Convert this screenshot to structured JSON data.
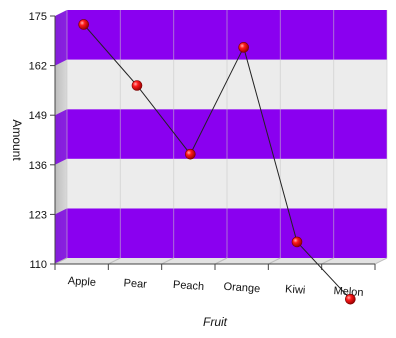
{
  "chart_data": {
    "type": "line",
    "title": "",
    "xlabel": "Fruit",
    "ylabel": "Amount",
    "categories": [
      "Apple",
      "Pear",
      "Peach",
      "Orange",
      "Kiwi",
      "Melon"
    ],
    "values": [
      172,
      156,
      138,
      166,
      115,
      100
    ],
    "ylim": [
      110,
      175
    ],
    "yticks": [
      "110",
      "123",
      "136",
      "149",
      "162",
      "175"
    ],
    "grid": true,
    "legend": "none",
    "colors": {
      "band_dark": "#8a00f0",
      "band_dark_top": "#7a00e0",
      "band_light": "#ececec",
      "marker": "#e00000",
      "line": "#222222",
      "floor": "#e2e2e2"
    }
  }
}
